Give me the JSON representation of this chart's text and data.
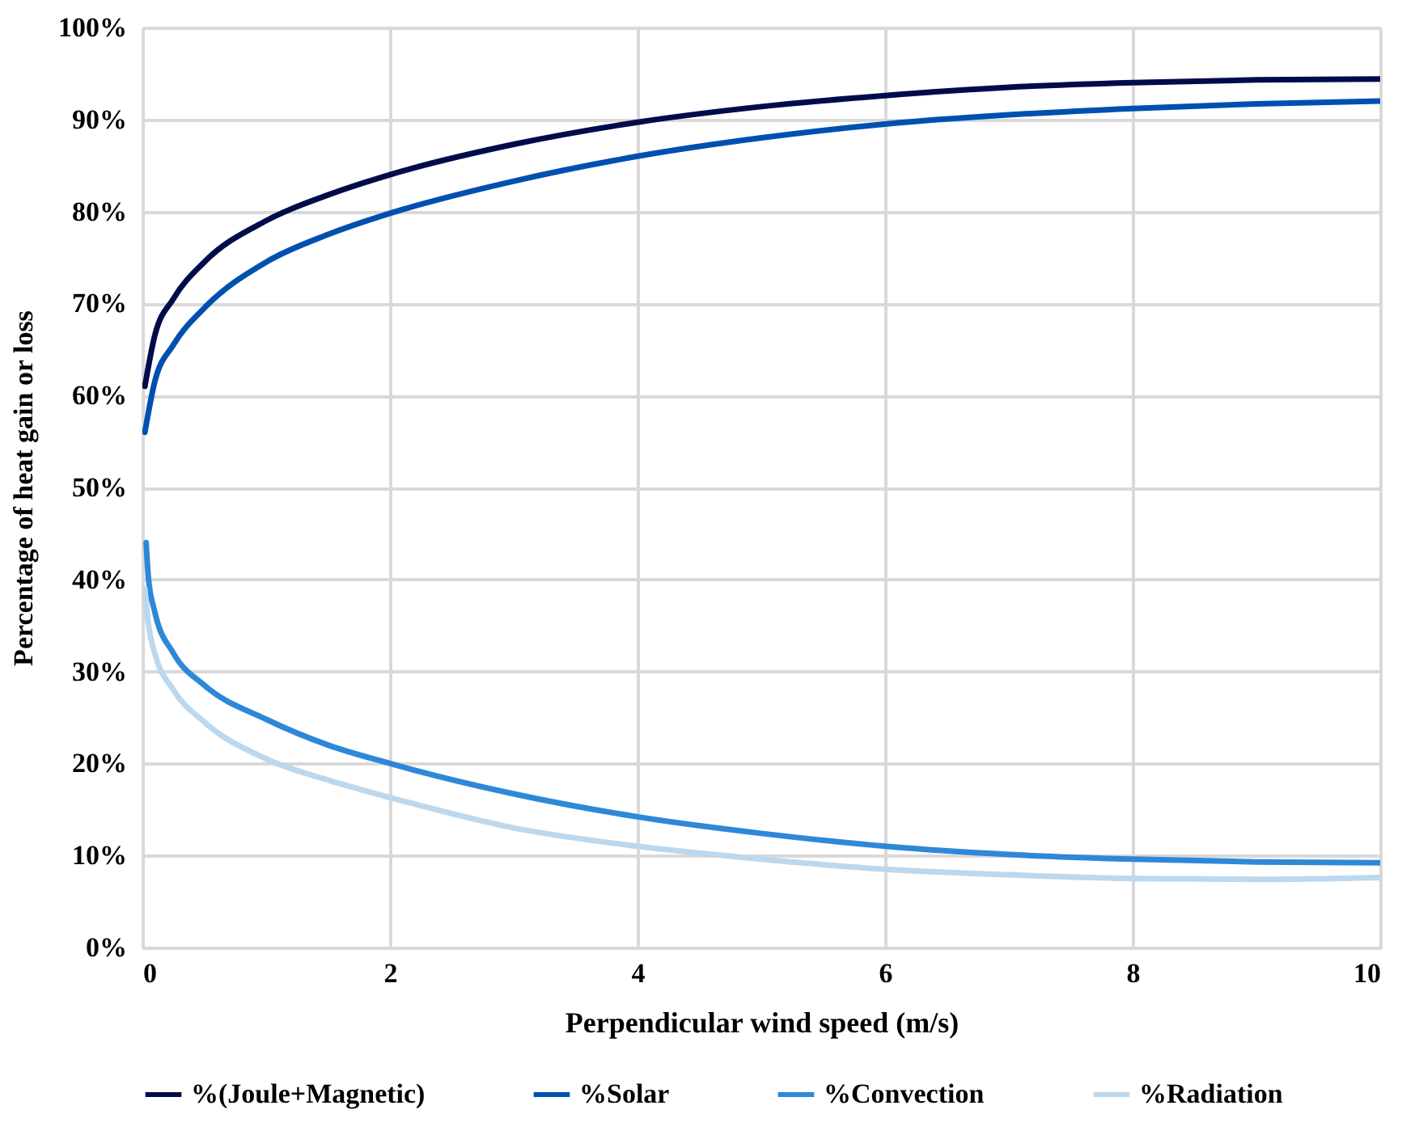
{
  "chart_data": {
    "type": "line",
    "xlabel": "Perpendicular wind speed (m/s)",
    "ylabel": "Percentage of heat gain or loss",
    "xlim": [
      0,
      10
    ],
    "xticks": [
      0,
      2,
      4,
      6,
      8,
      10
    ],
    "ylim": [
      0,
      100
    ],
    "yticks": [
      {
        "value": 0,
        "label": "0%"
      },
      {
        "value": 10,
        "label": "10%"
      },
      {
        "value": 20,
        "label": "20%"
      },
      {
        "value": 30,
        "label": "30%"
      },
      {
        "value": 40,
        "label": "40%"
      },
      {
        "value": 50,
        "label": "50%"
      },
      {
        "value": 60,
        "label": "60%"
      },
      {
        "value": 70,
        "label": "70%"
      },
      {
        "value": 80,
        "label": "80%"
      },
      {
        "value": 90,
        "label": "90%"
      },
      {
        "value": 100,
        "label": "100%"
      }
    ],
    "grid": true,
    "legend": "bottom",
    "marker": "none",
    "line_style": "solid",
    "series": [
      {
        "name": "%(Joule+Magnetic)",
        "color": "#000c4a",
        "x": [
          0.02,
          0.1,
          0.25,
          0.5,
          1,
          1.5,
          2,
          3,
          4,
          5,
          6,
          7,
          8,
          9,
          10
        ],
        "values": [
          61,
          66.5,
          70.5,
          74.5,
          79,
          81.8,
          84,
          87.3,
          89.7,
          91.4,
          92.6,
          93.5,
          94,
          94.3,
          94.4
        ]
      },
      {
        "name": "%Solar",
        "color": "#0050b0",
        "x": [
          0.02,
          0.1,
          0.25,
          0.5,
          1,
          1.5,
          2,
          3,
          4,
          5,
          6,
          7,
          8,
          9,
          10
        ],
        "values": [
          56,
          61.5,
          65.5,
          69.5,
          74.5,
          77.5,
          79.8,
          83.3,
          86,
          88,
          89.5,
          90.5,
          91.2,
          91.7,
          92
        ]
      },
      {
        "name": "%Convection",
        "color": "#2e88d8",
        "x": [
          0.03,
          0.05,
          0.1,
          0.25,
          0.5,
          1,
          1.5,
          2,
          3,
          4,
          5,
          6,
          7,
          8,
          9,
          10
        ],
        "values": [
          44,
          40,
          36.5,
          32,
          28.5,
          24.8,
          22,
          20,
          16.7,
          14.2,
          12.4,
          11,
          10.1,
          9.6,
          9.3,
          9.2
        ]
      },
      {
        "name": "%Radiation",
        "color": "#bcd8ee",
        "x": [
          0.02,
          0.05,
          0.1,
          0.25,
          0.5,
          1,
          1.5,
          2,
          3,
          4,
          5,
          6,
          7,
          8,
          9,
          10
        ],
        "values": [
          39,
          35,
          32,
          28,
          24.5,
          20.5,
          18.2,
          16.3,
          13,
          11,
          9.6,
          8.5,
          7.9,
          7.5,
          7.4,
          7.6
        ]
      }
    ]
  }
}
